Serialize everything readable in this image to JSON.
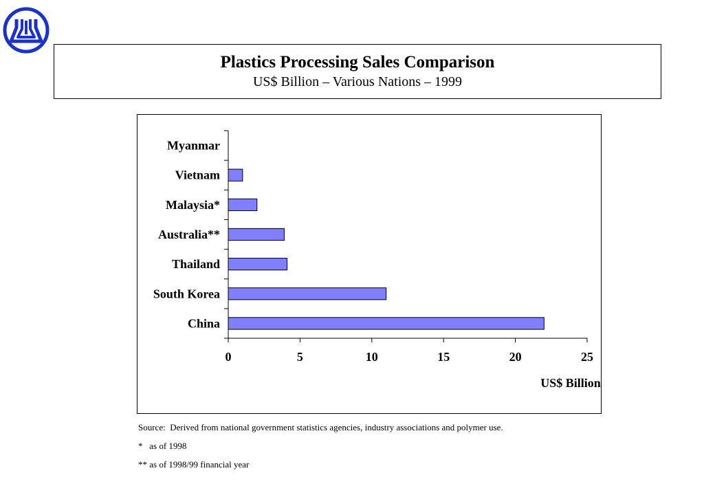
{
  "logo": {
    "icon": "company-logo-icon",
    "color": "#1a33cc"
  },
  "header": {
    "title": "Plastics Processing Sales Comparison",
    "subtitle": "US$ Billion – Various Nations – 1999"
  },
  "chart_data": {
    "type": "bar",
    "orientation": "horizontal",
    "categories": [
      "Myanmar",
      "Vietnam",
      "Malaysia*",
      "Australia**",
      "Thailand",
      "South Korea",
      "China"
    ],
    "values": [
      0,
      1,
      2,
      3.9,
      4.1,
      11,
      22
    ],
    "xlabel": "US$ Billion",
    "xlim": [
      0,
      25
    ],
    "xticks": [
      "0",
      "5",
      "10",
      "15",
      "20",
      "25"
    ],
    "grid": false,
    "legend": "none",
    "bar_color": "#8080ff"
  },
  "notes": {
    "source": "Source:  Derived from national government statistics agencies, industry associations and polymer use.",
    "note1": "*   as of 1998",
    "note2": "** as of 1998/99 financial year"
  }
}
